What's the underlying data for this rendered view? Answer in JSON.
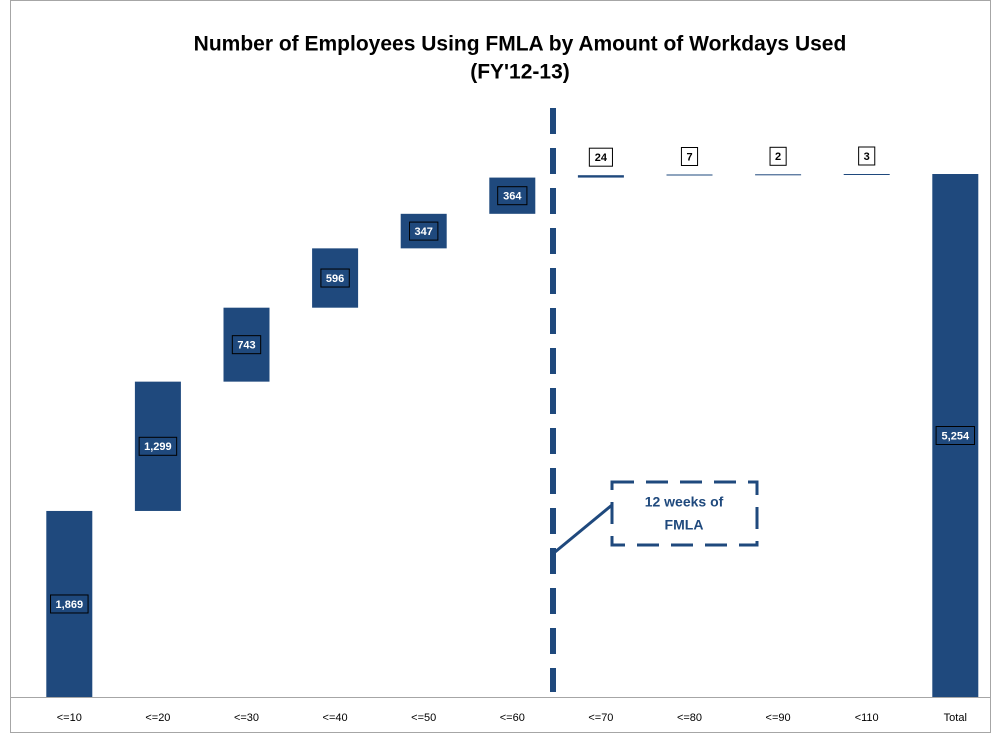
{
  "chart_data": {
    "type": "waterfall",
    "title": "Number of Employees Using FMLA by Amount of Workdays Used",
    "subtitle": "(FY'12-13)",
    "categories": [
      "<=10",
      "<=20",
      "<=30",
      "<=40",
      "<=50",
      "<=60",
      "<=70",
      "<=80",
      "<=90",
      "<110",
      "Total"
    ],
    "values": [
      1869,
      1299,
      743,
      596,
      347,
      364,
      24,
      7,
      2,
      3,
      5254
    ],
    "value_labels": [
      "1,869",
      "1,299",
      "743",
      "596",
      "347",
      "364",
      "24",
      "7",
      "2",
      "3",
      "5,254"
    ],
    "color": "#1f497d",
    "annotation": [
      "12 weeks of",
      "FMLA"
    ]
  }
}
